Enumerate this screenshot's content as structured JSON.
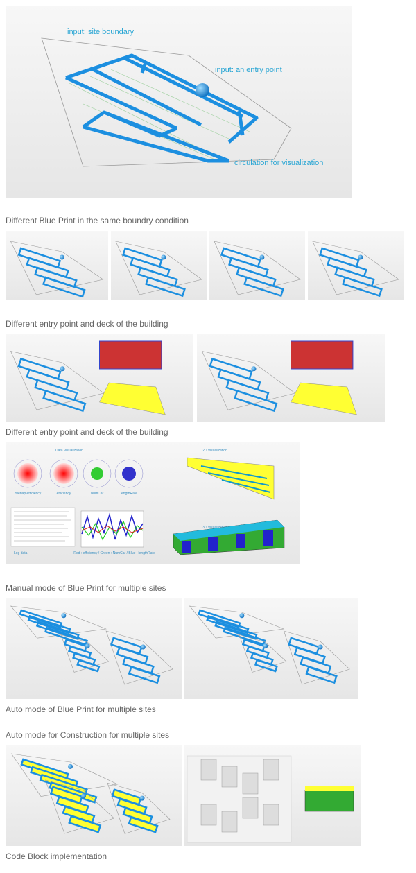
{
  "hero": {
    "labels": [
      "input: site boundary",
      "input: an entry point",
      "circulation for visualization"
    ]
  },
  "captions": [
    "Different Blue Print in the same boundry condition",
    "Different entry point and deck of the building",
    "Different entry point and deck of the building",
    "Manual mode of Blue Print for multiple sites",
    "Auto mode of Blue Print for multiple sites",
    "Auto mode for Construction for multiple sites",
    "Code Block implementation"
  ],
  "dashboard": {
    "sections": [
      "Data Visualization",
      "2D Visualization",
      "3D Visualization"
    ],
    "charts": [
      "overlap efficiency",
      "efficiency",
      "NumCar",
      "lengthRate"
    ],
    "log": "Log data",
    "legend": "Red : efficiency / Green : NumCar / Blue : lengthRate"
  }
}
